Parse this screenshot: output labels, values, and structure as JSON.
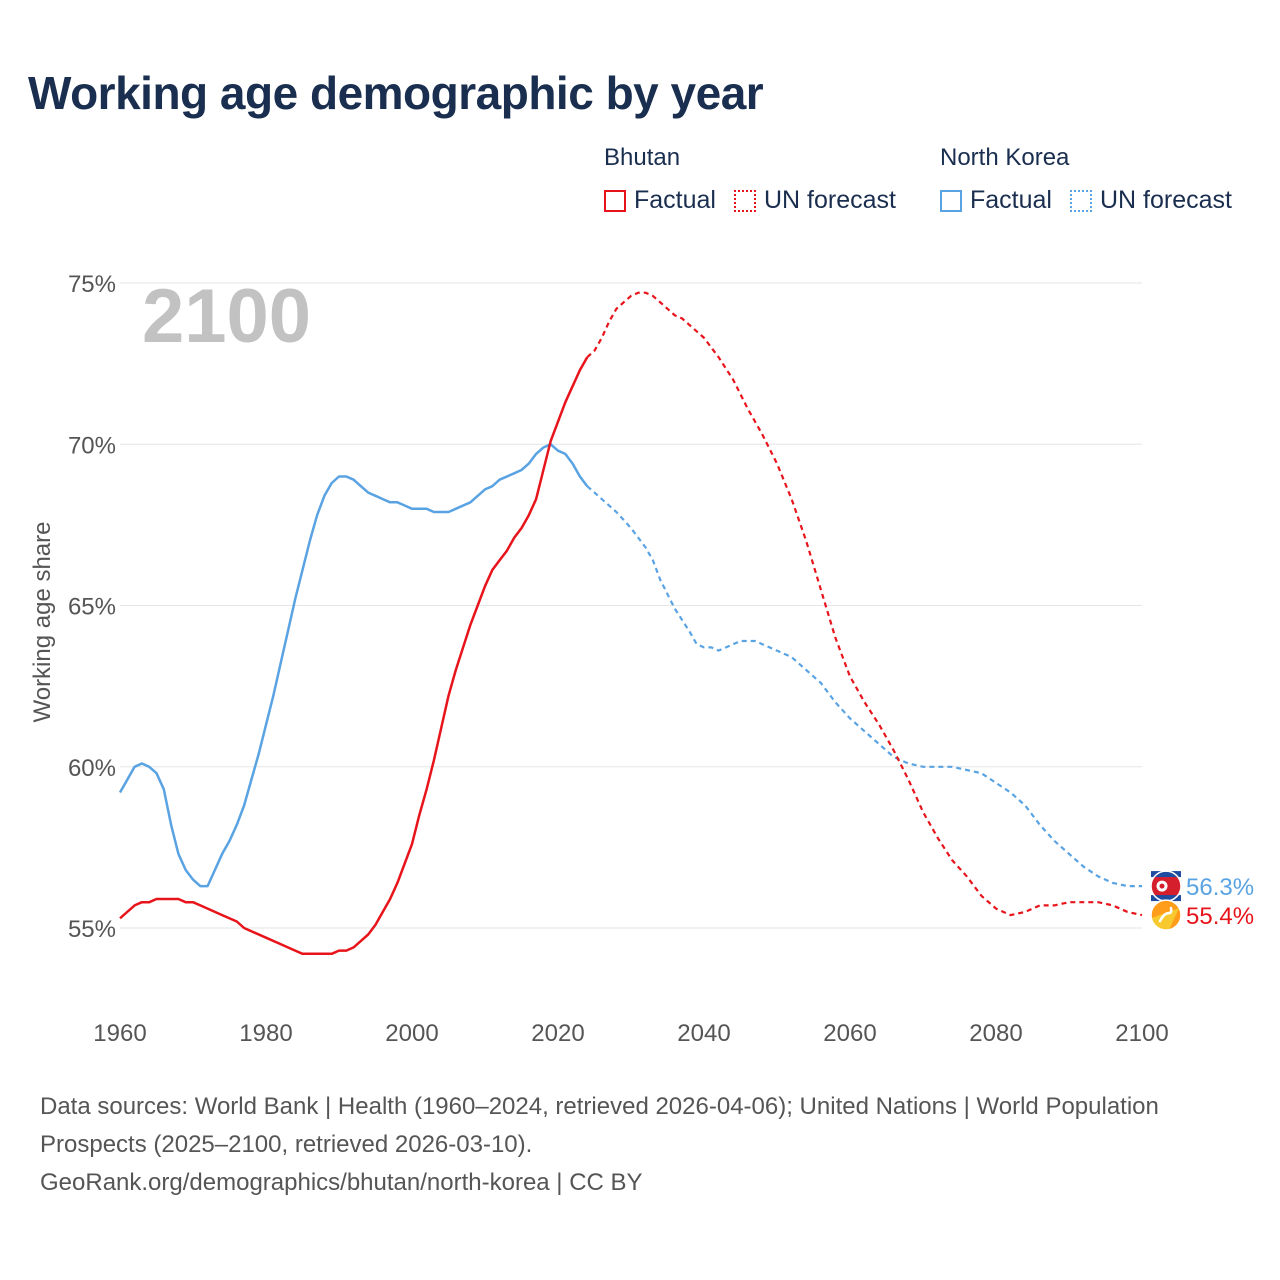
{
  "title": "Working age demographic by year",
  "year_watermark": "2100",
  "legend": {
    "groups": [
      {
        "name": "Bhutan",
        "color": "#e8141b",
        "factual_label": "Factual",
        "forecast_label": "UN forecast"
      },
      {
        "name": "North Korea",
        "color": "#5aa3e3",
        "factual_label": "Factual",
        "forecast_label": "UN forecast"
      }
    ]
  },
  "footer": {
    "sources": "Data sources: World Bank | Health (1960–2024, retrieved 2026-04-06); United Nations | World Population Prospects (2025–2100, retrieved 2026-03-10).",
    "link": "GeoRank.org/demographics/bhutan/north-korea | CC BY"
  },
  "chart_data": {
    "type": "line",
    "title": "Working age demographic by year",
    "xlabel": "",
    "ylabel": "Working age share",
    "xlim": [
      1960,
      2100
    ],
    "ylim": [
      53,
      75
    ],
    "x_ticks": [
      1960,
      1980,
      2000,
      2020,
      2040,
      2060,
      2080,
      2100
    ],
    "x_tick_labels": [
      "1960",
      "1980",
      "2000",
      "2020",
      "2040",
      "2060",
      "2080",
      "2100"
    ],
    "y_ticks": [
      55,
      60,
      65,
      70,
      75
    ],
    "y_tick_labels": [
      "55%",
      "60%",
      "65%",
      "70%",
      "75%"
    ],
    "grid": true,
    "forecast_start": 2024,
    "series": [
      {
        "name": "North Korea",
        "color": "#5aa3e3",
        "end_label": "56.3%",
        "flag": "north-korea-flag",
        "points": [
          [
            1960,
            59.2
          ],
          [
            1962,
            60.0
          ],
          [
            1963,
            60.1
          ],
          [
            1964,
            60.0
          ],
          [
            1965,
            59.8
          ],
          [
            1966,
            59.3
          ],
          [
            1967,
            58.2
          ],
          [
            1968,
            57.3
          ],
          [
            1969,
            56.8
          ],
          [
            1970,
            56.5
          ],
          [
            1971,
            56.3
          ],
          [
            1972,
            56.3
          ],
          [
            1973,
            56.8
          ],
          [
            1974,
            57.3
          ],
          [
            1975,
            57.7
          ],
          [
            1976,
            58.2
          ],
          [
            1977,
            58.8
          ],
          [
            1978,
            59.6
          ],
          [
            1979,
            60.4
          ],
          [
            1980,
            61.3
          ],
          [
            1981,
            62.2
          ],
          [
            1982,
            63.2
          ],
          [
            1983,
            64.2
          ],
          [
            1984,
            65.2
          ],
          [
            1985,
            66.1
          ],
          [
            1986,
            67.0
          ],
          [
            1987,
            67.8
          ],
          [
            1988,
            68.4
          ],
          [
            1989,
            68.8
          ],
          [
            1990,
            69.0
          ],
          [
            1991,
            69.0
          ],
          [
            1992,
            68.9
          ],
          [
            1993,
            68.7
          ],
          [
            1994,
            68.5
          ],
          [
            1995,
            68.4
          ],
          [
            1996,
            68.3
          ],
          [
            1997,
            68.2
          ],
          [
            1998,
            68.2
          ],
          [
            1999,
            68.1
          ],
          [
            2000,
            68.0
          ],
          [
            2002,
            68.0
          ],
          [
            2003,
            67.9
          ],
          [
            2005,
            67.9
          ],
          [
            2006,
            68.0
          ],
          [
            2008,
            68.2
          ],
          [
            2010,
            68.6
          ],
          [
            2011,
            68.7
          ],
          [
            2012,
            68.9
          ],
          [
            2014,
            69.1
          ],
          [
            2015,
            69.2
          ],
          [
            2016,
            69.4
          ],
          [
            2017,
            69.7
          ],
          [
            2018,
            69.9
          ],
          [
            2019,
            70.0
          ],
          [
            2020,
            69.8
          ],
          [
            2021,
            69.7
          ],
          [
            2022,
            69.4
          ],
          [
            2023,
            69.0
          ],
          [
            2024,
            68.7
          ],
          [
            2025,
            68.5
          ],
          [
            2026,
            68.3
          ],
          [
            2028,
            67.9
          ],
          [
            2030,
            67.4
          ],
          [
            2032,
            66.8
          ],
          [
            2033,
            66.4
          ],
          [
            2034,
            65.8
          ],
          [
            2036,
            64.9
          ],
          [
            2038,
            64.2
          ],
          [
            2039,
            63.8
          ],
          [
            2040,
            63.7
          ],
          [
            2041,
            63.7
          ],
          [
            2042,
            63.6
          ],
          [
            2044,
            63.8
          ],
          [
            2045,
            63.9
          ],
          [
            2047,
            63.9
          ],
          [
            2048,
            63.8
          ],
          [
            2050,
            63.6
          ],
          [
            2052,
            63.4
          ],
          [
            2054,
            63.0
          ],
          [
            2056,
            62.6
          ],
          [
            2058,
            62.0
          ],
          [
            2060,
            61.5
          ],
          [
            2062,
            61.1
          ],
          [
            2064,
            60.7
          ],
          [
            2066,
            60.3
          ],
          [
            2068,
            60.1
          ],
          [
            2070,
            60.0
          ],
          [
            2072,
            60.0
          ],
          [
            2074,
            60.0
          ],
          [
            2076,
            59.9
          ],
          [
            2078,
            59.8
          ],
          [
            2080,
            59.5
          ],
          [
            2082,
            59.2
          ],
          [
            2084,
            58.8
          ],
          [
            2086,
            58.2
          ],
          [
            2088,
            57.7
          ],
          [
            2090,
            57.3
          ],
          [
            2092,
            56.9
          ],
          [
            2094,
            56.6
          ],
          [
            2096,
            56.4
          ],
          [
            2098,
            56.3
          ],
          [
            2100,
            56.3
          ]
        ]
      },
      {
        "name": "Bhutan",
        "color": "#e8141b",
        "end_label": "55.4%",
        "flag": "bhutan-flag",
        "points": [
          [
            1960,
            55.3
          ],
          [
            1962,
            55.7
          ],
          [
            1963,
            55.8
          ],
          [
            1964,
            55.8
          ],
          [
            1965,
            55.9
          ],
          [
            1966,
            55.9
          ],
          [
            1967,
            55.9
          ],
          [
            1968,
            55.9
          ],
          [
            1969,
            55.8
          ],
          [
            1970,
            55.8
          ],
          [
            1971,
            55.7
          ],
          [
            1972,
            55.6
          ],
          [
            1974,
            55.4
          ],
          [
            1976,
            55.2
          ],
          [
            1977,
            55.0
          ],
          [
            1980,
            54.7
          ],
          [
            1982,
            54.5
          ],
          [
            1984,
            54.3
          ],
          [
            1985,
            54.2
          ],
          [
            1986,
            54.2
          ],
          [
            1989,
            54.2
          ],
          [
            1990,
            54.3
          ],
          [
            1991,
            54.3
          ],
          [
            1992,
            54.4
          ],
          [
            1993,
            54.6
          ],
          [
            1994,
            54.8
          ],
          [
            1995,
            55.1
          ],
          [
            1996,
            55.5
          ],
          [
            1997,
            55.9
          ],
          [
            1998,
            56.4
          ],
          [
            1999,
            57.0
          ],
          [
            2000,
            57.6
          ],
          [
            2001,
            58.5
          ],
          [
            2002,
            59.3
          ],
          [
            2003,
            60.2
          ],
          [
            2004,
            61.2
          ],
          [
            2005,
            62.2
          ],
          [
            2006,
            63.0
          ],
          [
            2007,
            63.7
          ],
          [
            2008,
            64.4
          ],
          [
            2009,
            65.0
          ],
          [
            2010,
            65.6
          ],
          [
            2011,
            66.1
          ],
          [
            2012,
            66.4
          ],
          [
            2013,
            66.7
          ],
          [
            2014,
            67.1
          ],
          [
            2015,
            67.4
          ],
          [
            2016,
            67.8
          ],
          [
            2017,
            68.3
          ],
          [
            2018,
            69.2
          ],
          [
            2019,
            70.1
          ],
          [
            2020,
            70.7
          ],
          [
            2021,
            71.3
          ],
          [
            2022,
            71.8
          ],
          [
            2023,
            72.3
          ],
          [
            2024,
            72.7
          ],
          [
            2025,
            72.9
          ],
          [
            2026,
            73.3
          ],
          [
            2027,
            73.8
          ],
          [
            2028,
            74.2
          ],
          [
            2029,
            74.4
          ],
          [
            2030,
            74.6
          ],
          [
            2031,
            74.7
          ],
          [
            2032,
            74.7
          ],
          [
            2033,
            74.6
          ],
          [
            2034,
            74.4
          ],
          [
            2035,
            74.2
          ],
          [
            2036,
            74.0
          ],
          [
            2037,
            73.9
          ],
          [
            2038,
            73.7
          ],
          [
            2040,
            73.3
          ],
          [
            2042,
            72.7
          ],
          [
            2044,
            72.0
          ],
          [
            2046,
            71.1
          ],
          [
            2048,
            70.3
          ],
          [
            2050,
            69.4
          ],
          [
            2052,
            68.3
          ],
          [
            2054,
            67.0
          ],
          [
            2056,
            65.5
          ],
          [
            2058,
            64.0
          ],
          [
            2060,
            62.8
          ],
          [
            2062,
            62.0
          ],
          [
            2064,
            61.3
          ],
          [
            2066,
            60.5
          ],
          [
            2068,
            59.6
          ],
          [
            2070,
            58.6
          ],
          [
            2072,
            57.8
          ],
          [
            2074,
            57.1
          ],
          [
            2076,
            56.6
          ],
          [
            2078,
            56.0
          ],
          [
            2080,
            55.6
          ],
          [
            2082,
            55.4
          ],
          [
            2084,
            55.5
          ],
          [
            2086,
            55.7
          ],
          [
            2088,
            55.7
          ],
          [
            2090,
            55.8
          ],
          [
            2094,
            55.8
          ],
          [
            2096,
            55.7
          ],
          [
            2098,
            55.5
          ],
          [
            2100,
            55.4
          ]
        ]
      }
    ]
  }
}
